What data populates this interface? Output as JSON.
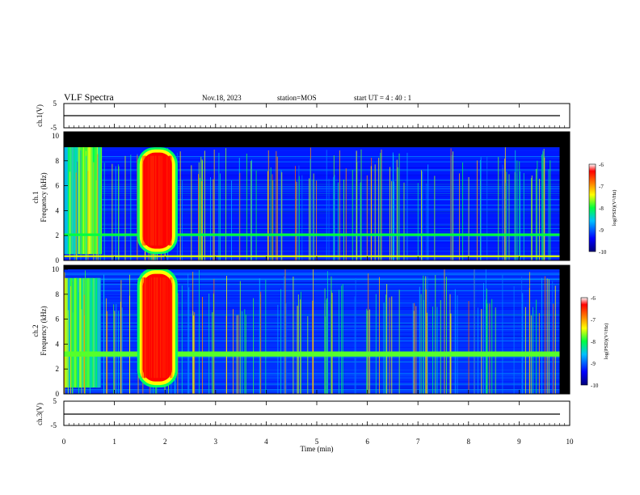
{
  "header": {
    "title": "VLF Spectra",
    "date": "Nov.18, 2023",
    "station": "station=MOS",
    "start": "start  UT =  4 : 40 : 1"
  },
  "colors": {
    "black": "#000000",
    "colorbar_stops": [
      "#00007a",
      "#0000ff",
      "#00c0ff",
      "#00ff40",
      "#ffff00",
      "#ff8000",
      "#ff0000",
      "#ffffff"
    ]
  },
  "chart_data": [
    {
      "type": "line",
      "name": "ch1-waveform",
      "ylabel": "ch.1(V)",
      "yticks": [
        "5",
        "-5"
      ],
      "ylim": [
        -5,
        5
      ],
      "xlim": [
        0,
        10
      ],
      "x": [
        0,
        10
      ],
      "values": [
        0,
        0
      ]
    },
    {
      "type": "heatmap",
      "name": "ch1-spectrogram",
      "ylabel": "Frequency (kHz)",
      "channel_label": "ch.1",
      "yticks": [
        "0",
        "2",
        "4",
        "6",
        "8",
        "10"
      ],
      "ylim": [
        0,
        10
      ],
      "xlim": [
        0,
        10
      ],
      "colorbar": {
        "label": "log(PSD)(V²/Hz)",
        "ticks": [
          "-6",
          "-7",
          "-8",
          "-9",
          "-10"
        ],
        "range": [
          -10,
          -6
        ]
      },
      "features": [
        {
          "label": "broadband burst",
          "t_start": 1.45,
          "t_end": 2.25,
          "f_low": 0.5,
          "f_high": 8.8,
          "log_psd": -6.3
        },
        {
          "label": "enhanced noise",
          "t_start": 0.0,
          "t_end": 0.7,
          "f_low": 0.5,
          "f_high": 8.8,
          "log_psd": -8.0
        },
        {
          "label": "background",
          "t_start": 2.25,
          "t_end": 9.8,
          "f_low": 0.0,
          "f_high": 8.8,
          "log_psd": -9.3
        },
        {
          "label": "line 0.3 kHz",
          "t_start": 0.0,
          "t_end": 9.8,
          "f_low": 0.25,
          "f_high": 0.4,
          "log_psd": -7.5
        },
        {
          "label": "line 2 kHz",
          "t_start": 0.0,
          "t_end": 9.8,
          "f_low": 1.9,
          "f_high": 2.1,
          "log_psd": -8.0
        }
      ]
    },
    {
      "type": "heatmap",
      "name": "ch2-spectrogram",
      "ylabel": "Frequency (kHz)",
      "channel_label": "ch.2",
      "yticks": [
        "0",
        "2",
        "4",
        "6",
        "8",
        "10"
      ],
      "ylim": [
        0,
        10
      ],
      "xlim": [
        0,
        10
      ],
      "colorbar": {
        "label": "log(PSD)(V²/Hz)",
        "ticks": [
          "-6",
          "-7",
          "-8",
          "-9",
          "-10"
        ],
        "range": [
          -10,
          -6
        ]
      },
      "features": [
        {
          "label": "broadband burst",
          "t_start": 1.45,
          "t_end": 2.25,
          "f_low": 0.5,
          "f_high": 9.8,
          "log_psd": -6.3
        },
        {
          "label": "enhanced noise",
          "t_start": 0.0,
          "t_end": 0.7,
          "f_low": 0.5,
          "f_high": 9.0,
          "log_psd": -8.2
        },
        {
          "label": "background",
          "t_start": 2.25,
          "t_end": 9.8,
          "f_low": 0.0,
          "f_high": 9.8,
          "log_psd": -9.2
        },
        {
          "label": "line 3 kHz",
          "t_start": 0.0,
          "t_end": 9.8,
          "f_low": 2.9,
          "f_high": 3.3,
          "log_psd": -7.8
        }
      ]
    },
    {
      "type": "line",
      "name": "ch3-waveform",
      "ylabel": "ch.3(V)",
      "yticks": [
        "5",
        "-5"
      ],
      "ylim": [
        -5,
        5
      ],
      "xlim": [
        0,
        10
      ],
      "x": [
        0,
        10
      ],
      "values": [
        0,
        0
      ]
    }
  ],
  "xaxis": {
    "label": "Time (min)",
    "ticks": [
      "0",
      "1",
      "2",
      "3",
      "4",
      "5",
      "6",
      "7",
      "8",
      "9",
      "10"
    ]
  }
}
